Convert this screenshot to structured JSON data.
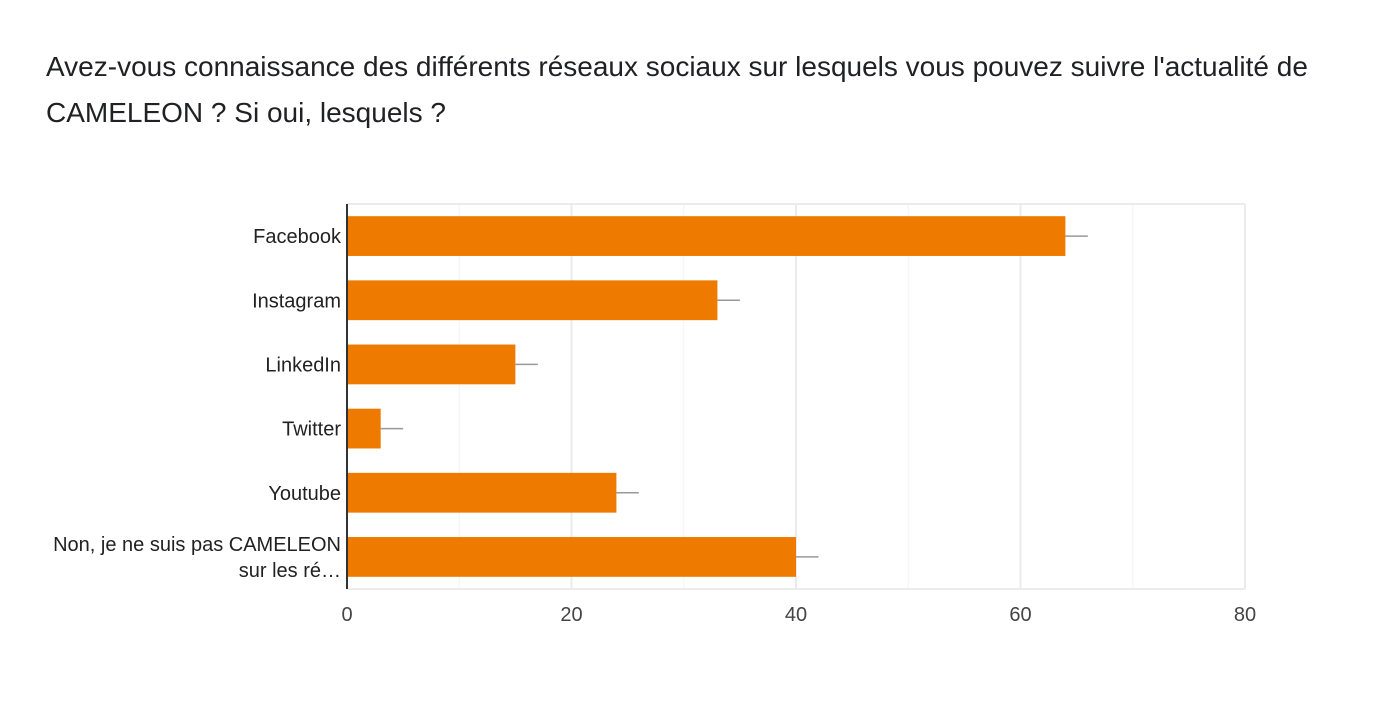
{
  "question": {
    "title": "Avez-vous connaissance des différents réseaux sociaux sur lesquels vous pouvez suivre l'actualité de CAMELEON ? Si oui, lesquels ?"
  },
  "colors": {
    "bar": "#ef7a00",
    "axis": "#333333",
    "grid": "#ebebeb",
    "error_bar": "#999999"
  },
  "chart_data": {
    "type": "bar",
    "orientation": "horizontal",
    "categories": [
      [
        "Facebook"
      ],
      [
        "Instagram"
      ],
      [
        "LinkedIn"
      ],
      [
        "Twitter"
      ],
      [
        "Youtube"
      ],
      [
        "Non, je ne suis pas CAMELEON",
        "sur les ré…"
      ]
    ],
    "values": [
      64,
      33,
      15,
      3,
      24,
      40
    ],
    "error_bar_upper": [
      66,
      35,
      17,
      5,
      26,
      42
    ],
    "xlim": [
      0,
      80
    ],
    "xticks": [
      0,
      20,
      40,
      60,
      80
    ],
    "minor_gridlines": [
      10,
      30,
      50,
      70
    ],
    "title": "",
    "xlabel": "",
    "ylabel": "",
    "grid": true,
    "legend": "none"
  }
}
